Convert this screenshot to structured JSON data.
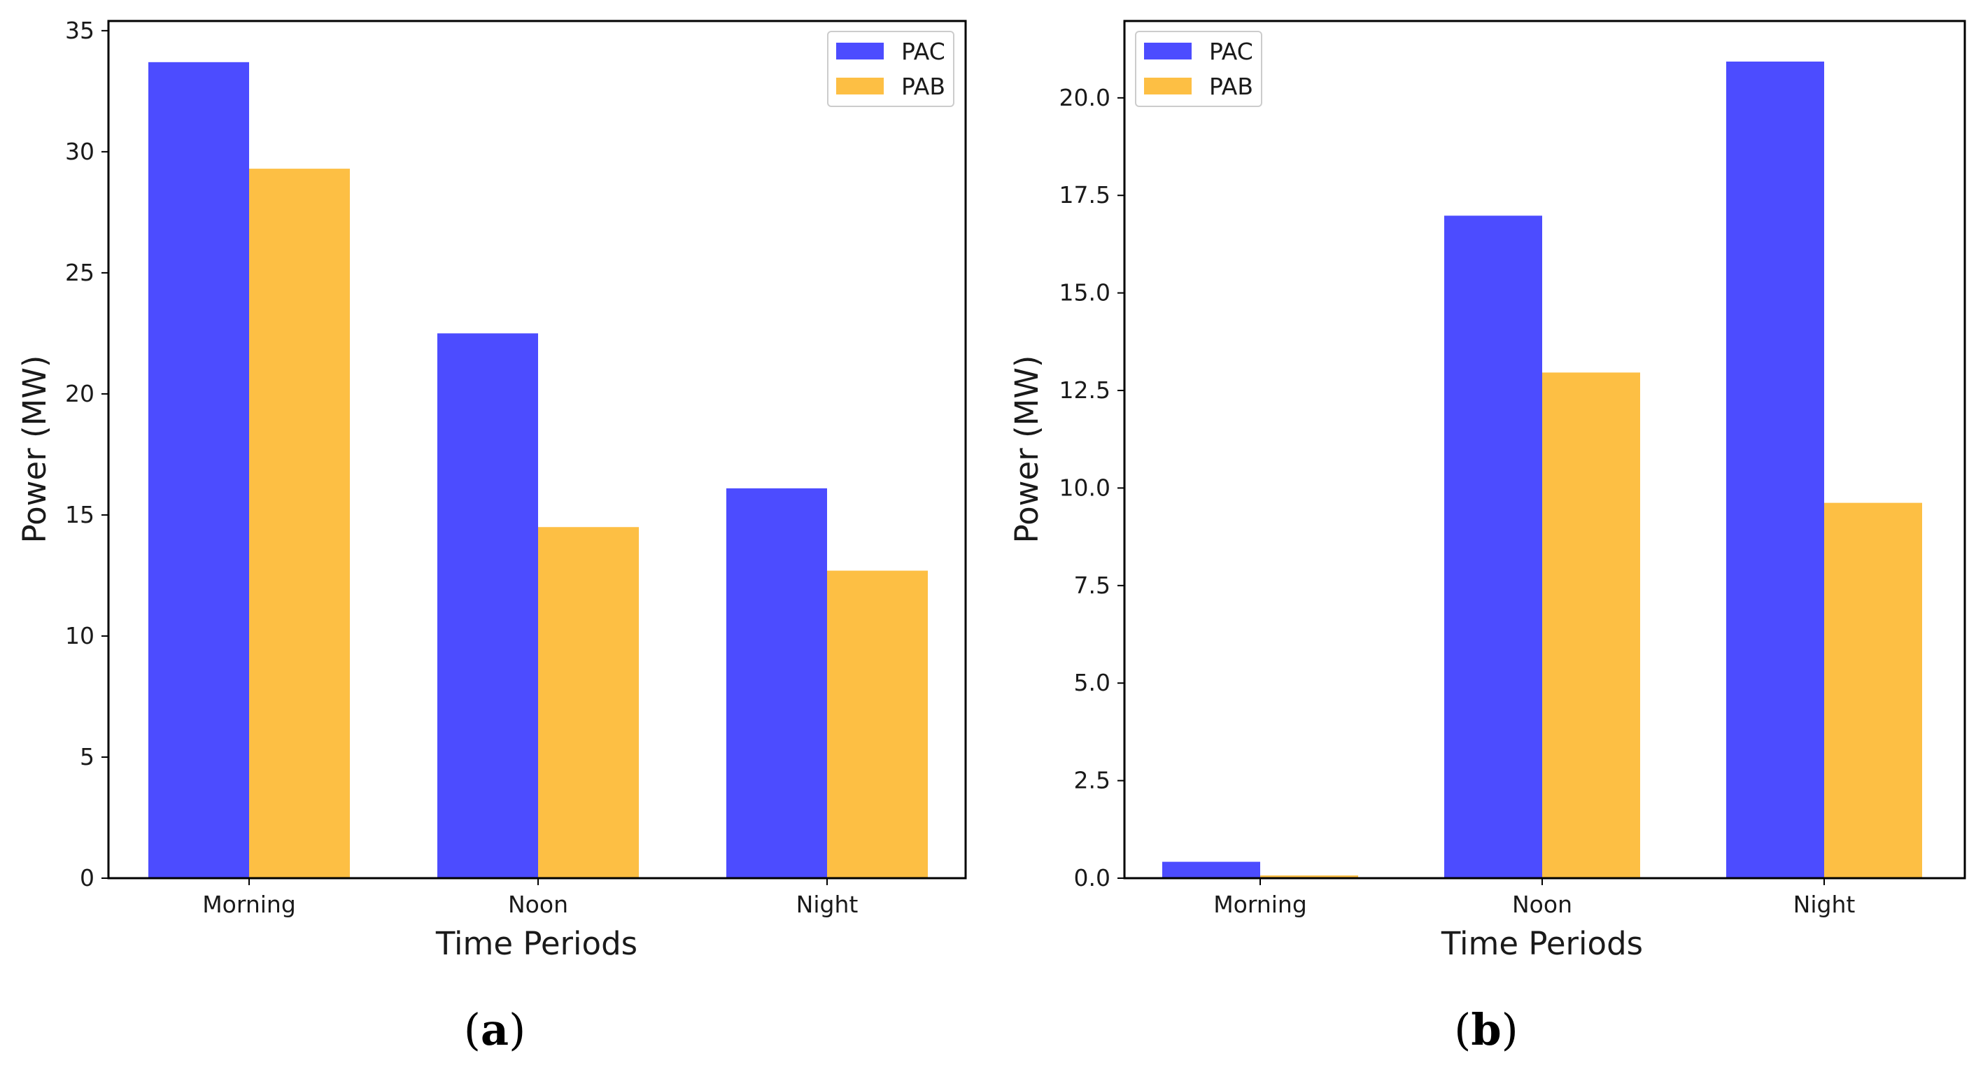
{
  "colors": {
    "PAC": "#4c4cff",
    "PAB": "#fdbf44"
  },
  "chart_data": [
    {
      "type": "bar",
      "panel_label": "(a)",
      "panel_letter": "a",
      "categories": [
        "Morning",
        "Noon",
        "Night"
      ],
      "series": [
        {
          "name": "PAC",
          "values": [
            33.7,
            22.5,
            16.1
          ]
        },
        {
          "name": "PAB",
          "values": [
            29.3,
            14.5,
            12.7
          ]
        }
      ],
      "xlabel": "Time Periods",
      "ylabel": "Power (MW)",
      "ylim": [
        0,
        35.4
      ],
      "yticks": [
        0,
        5,
        10,
        15,
        20,
        25,
        30,
        35
      ],
      "ytick_labels": [
        "0",
        "5",
        "10",
        "15",
        "20",
        "25",
        "30",
        "35"
      ],
      "legend_position": "top-right",
      "grid": false
    },
    {
      "type": "bar",
      "panel_label": "(b)",
      "panel_letter": "b",
      "categories": [
        "Morning",
        "Noon",
        "Night"
      ],
      "series": [
        {
          "name": "PAC",
          "values": [
            0.42,
            16.98,
            20.93
          ]
        },
        {
          "name": "PAB",
          "values": [
            0.07,
            12.96,
            9.62
          ]
        }
      ],
      "xlabel": "Time Periods",
      "ylabel": "Power (MW)",
      "ylim": [
        0,
        21.97
      ],
      "yticks": [
        0,
        2.5,
        5,
        7.5,
        10,
        12.5,
        15,
        17.5,
        20
      ],
      "ytick_labels": [
        "0.0",
        "2.5",
        "5.0",
        "7.5",
        "10.0",
        "12.5",
        "15.0",
        "17.5",
        "20.0"
      ],
      "legend_position": "top-left",
      "grid": false
    }
  ]
}
